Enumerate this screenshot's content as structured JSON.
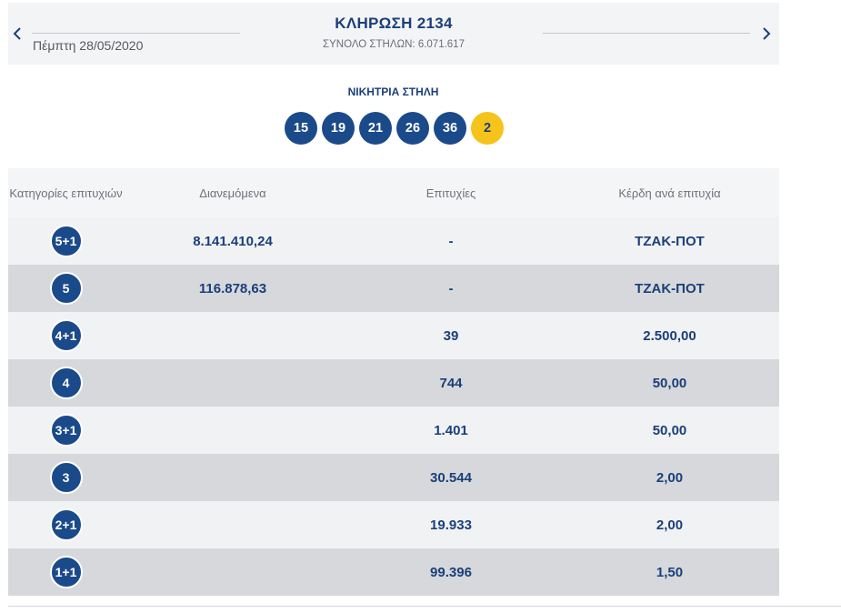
{
  "header": {
    "date": "Πέμπτη 28/05/2020",
    "title": "ΚΛΗΡΩΣΗ 2134",
    "total_columns": "ΣΥΝΟΛΟ ΣΤΗΛΩΝ: 6.071.617",
    "prev_icon": "chevron-left-icon",
    "next_icon": "chevron-right-icon"
  },
  "winning": {
    "label": "ΝΙΚΗΤΡΙΑ ΣΤΗΛΗ",
    "numbers": [
      "15",
      "19",
      "21",
      "26",
      "36"
    ],
    "bonus": "2",
    "colors": {
      "ball": "#1b4a8a",
      "bonus": "#f6c31b"
    }
  },
  "table": {
    "headers": {
      "category": "Κατηγορίες επιτυχιών",
      "distributed": "Διανεμόμενα",
      "winners": "Επιτυχίες",
      "prize": "Κέρδη ανά επιτυχία"
    },
    "rows": [
      {
        "category": "5+1",
        "distributed": "8.141.410,24",
        "winners": "-",
        "prize": "ΤΖΑΚ-ΠΟΤ"
      },
      {
        "category": "5",
        "distributed": "116.878,63",
        "winners": "-",
        "prize": "ΤΖΑΚ-ΠΟΤ"
      },
      {
        "category": "4+1",
        "distributed": "",
        "winners": "39",
        "prize": "2.500,00"
      },
      {
        "category": "4",
        "distributed": "",
        "winners": "744",
        "prize": "50,00"
      },
      {
        "category": "3+1",
        "distributed": "",
        "winners": "1.401",
        "prize": "50,00"
      },
      {
        "category": "3",
        "distributed": "",
        "winners": "30.544",
        "prize": "2,00"
      },
      {
        "category": "2+1",
        "distributed": "",
        "winners": "19.933",
        "prize": "2,00"
      },
      {
        "category": "1+1",
        "distributed": "",
        "winners": "99.396",
        "prize": "1,50"
      }
    ]
  }
}
